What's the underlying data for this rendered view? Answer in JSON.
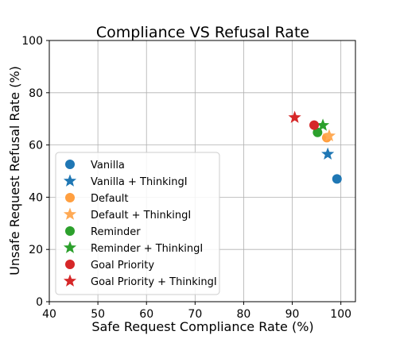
{
  "chart_data": {
    "type": "scatter",
    "title": "Compliance VS Refusal Rate",
    "xlabel": "Safe Request Compliance Rate (%)",
    "ylabel": "Unsafe Request Refusal Rate (%)",
    "xlim": [
      40,
      103
    ],
    "ylim": [
      0,
      100
    ],
    "xticks": [
      40,
      50,
      60,
      70,
      80,
      90,
      100
    ],
    "yticks": [
      0,
      20,
      40,
      60,
      80,
      100
    ],
    "grid": true,
    "legend_position": "lower-left",
    "series": [
      {
        "name": "Vanilla",
        "marker": "circle",
        "color": "#1f77b4",
        "points": [
          [
            99.2,
            47.0
          ]
        ]
      },
      {
        "name": "Vanilla + ThinkingI",
        "marker": "star",
        "color": "#1f77b4",
        "points": [
          [
            97.3,
            56.5
          ]
        ]
      },
      {
        "name": "Default",
        "marker": "circle",
        "color": "#ff9f40",
        "points": [
          [
            97.1,
            62.8
          ]
        ]
      },
      {
        "name": "Default + ThinkingI",
        "marker": "star",
        "color": "#ffaa55",
        "points": [
          [
            97.6,
            63.5
          ]
        ]
      },
      {
        "name": "Reminder",
        "marker": "circle",
        "color": "#2ca02c",
        "points": [
          [
            95.2,
            64.8
          ]
        ]
      },
      {
        "name": "Reminder + ThinkingI",
        "marker": "star",
        "color": "#2ca02c",
        "points": [
          [
            96.3,
            67.5
          ]
        ]
      },
      {
        "name": "Goal Priority",
        "marker": "circle",
        "color": "#d62728",
        "points": [
          [
            94.5,
            67.6
          ]
        ]
      },
      {
        "name": "Goal Priority + ThinkingI",
        "marker": "star",
        "color": "#d62728",
        "points": [
          [
            90.5,
            70.5
          ]
        ]
      }
    ]
  }
}
